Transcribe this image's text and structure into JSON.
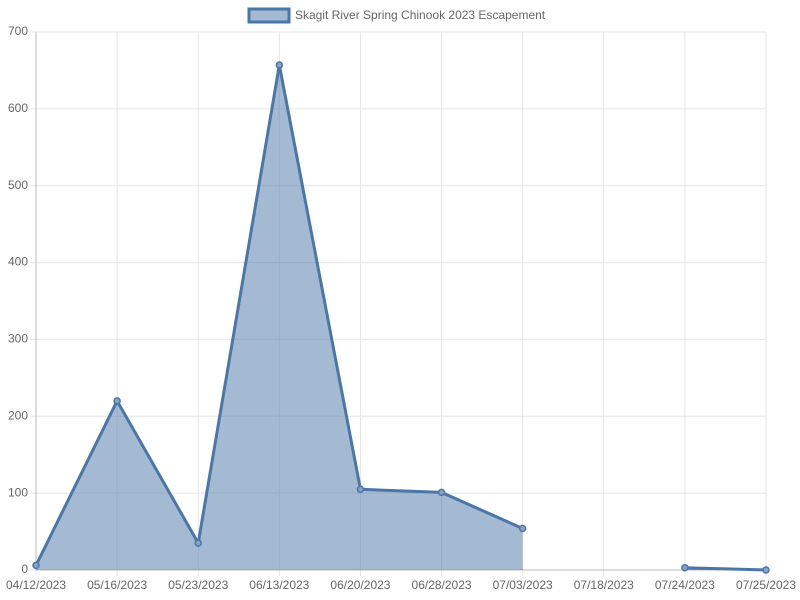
{
  "chart_data": {
    "type": "area",
    "categories": [
      "04/12/2023",
      "05/16/2023",
      "05/23/2023",
      "06/13/2023",
      "06/20/2023",
      "06/28/2023",
      "07/03/2023",
      "07/18/2023",
      "07/24/2023",
      "07/25/2023"
    ],
    "series": [
      {
        "name": "Skagit River Spring Chinook 2023 Escapement",
        "color": "#4a76a8",
        "values": [
          6,
          220,
          35,
          657,
          105,
          101,
          54,
          null,
          3,
          0
        ]
      }
    ],
    "ylim": [
      0,
      700
    ],
    "yticks": [
      0,
      100,
      200,
      300,
      400,
      500,
      600,
      700
    ],
    "grid": true,
    "legend": "top"
  }
}
